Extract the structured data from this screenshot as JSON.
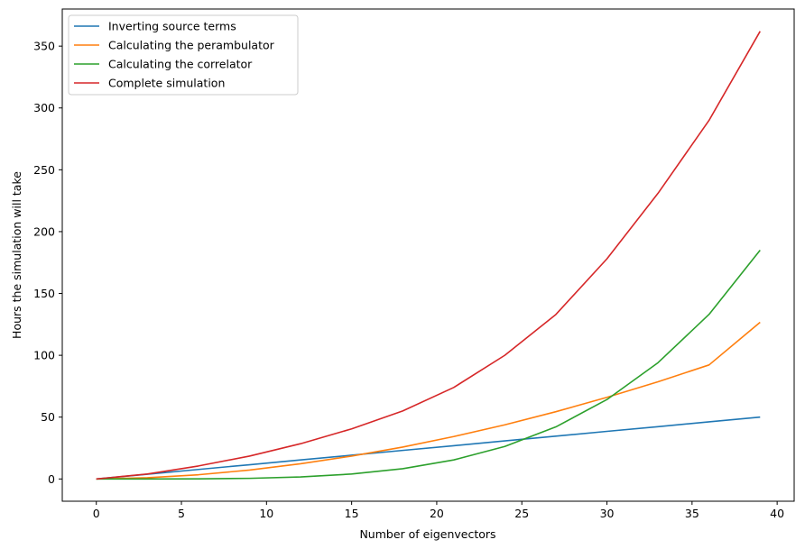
{
  "chart_data": {
    "type": "line",
    "title": "",
    "xlabel": "Number of eigenvectors",
    "ylabel": "Hours the simulation will take",
    "xlim": [
      -2,
      41
    ],
    "ylim": [
      -18,
      380
    ],
    "xticks": [
      0,
      5,
      10,
      15,
      20,
      25,
      30,
      35,
      40
    ],
    "yticks": [
      0,
      50,
      100,
      150,
      200,
      250,
      300,
      350
    ],
    "grid": false,
    "legend_position": "upper-left",
    "x": [
      0,
      3,
      6,
      9,
      12,
      15,
      18,
      21,
      24,
      27,
      30,
      33,
      36,
      39
    ],
    "series": [
      {
        "name": "Inverting source terms",
        "color": "#1f77b4",
        "values": [
          0.0,
          3.85,
          7.7,
          11.5,
          15.4,
          19.2,
          23.1,
          26.9,
          30.8,
          34.6,
          38.5,
          42.3,
          46.2,
          50.0
        ]
      },
      {
        "name": "Calculating the perambulator",
        "color": "#ff7f0e",
        "values": [
          0.0,
          1.0,
          3.4,
          7.2,
          12.3,
          18.5,
          25.8,
          34.3,
          43.8,
          54.4,
          66.0,
          78.6,
          92.2,
          126.7
        ]
      },
      {
        "name": "Calculating the correlator",
        "color": "#2ca02c",
        "values": [
          0.0,
          0.01,
          0.1,
          0.5,
          1.6,
          4.0,
          8.3,
          15.4,
          26.3,
          42.1,
          64.2,
          94.0,
          133.1,
          185.0
        ]
      },
      {
        "name": "Complete simulation",
        "color": "#d62728",
        "values": [
          0.0,
          4.0,
          10.5,
          18.5,
          28.5,
          40.5,
          55.0,
          74.0,
          100.0,
          133.0,
          178.0,
          231.0,
          290.0,
          362.0
        ]
      }
    ]
  }
}
